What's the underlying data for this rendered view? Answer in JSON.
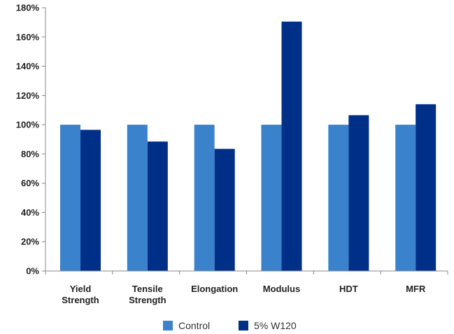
{
  "chart_data": {
    "type": "bar",
    "categories": [
      [
        "Yield",
        "Strength"
      ],
      [
        "Tensile",
        "Strength"
      ],
      [
        "Elongation"
      ],
      [
        "Modulus"
      ],
      [
        "HDT"
      ],
      [
        "MFR"
      ]
    ],
    "series": [
      {
        "name": "Control",
        "color": "#3a82cc",
        "values": [
          100,
          100,
          100,
          100,
          100,
          100
        ]
      },
      {
        "name": "5% W120",
        "color": "#002f87",
        "values": [
          96.5,
          88.5,
          83.5,
          170.5,
          106.5,
          114
        ]
      }
    ],
    "y_ticks": [
      "0%",
      "20%",
      "40%",
      "60%",
      "80%",
      "100%",
      "120%",
      "140%",
      "160%",
      "180%"
    ],
    "ylim": [
      0,
      180
    ],
    "y_step": 20,
    "title": "",
    "xlabel": "",
    "ylabel": "",
    "grid": false,
    "legend_position": "bottom"
  }
}
